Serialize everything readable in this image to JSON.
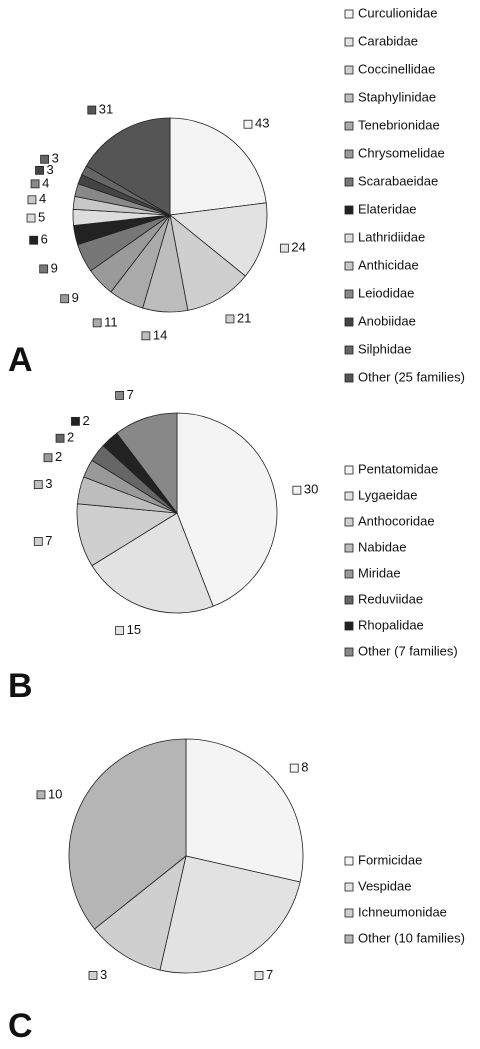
{
  "chart_data": [
    {
      "type": "pie",
      "panel": "A",
      "categories": [
        "Curculionidae",
        "Carabidae",
        "Coccinellidae",
        "Staphylinidae",
        "Tenebrionidae",
        "Chrysomelidae",
        "Scarabaeidae",
        "Elateridae",
        "Lathridiidae",
        "Anthicidae",
        "Leiodidae",
        "Anobiidae",
        "Silphidae",
        "Other (25 families)"
      ],
      "values": [
        43,
        24,
        21,
        14,
        11,
        9,
        9,
        6,
        5,
        4,
        4,
        3,
        3,
        31
      ],
      "colors": [
        "#f4f4f4",
        "#e2e2e2",
        "#cfcfcf",
        "#bdbdbd",
        "#aaaaaa",
        "#9a9a9a",
        "#777777",
        "#222222",
        "#dddddd",
        "#c8c8c8",
        "#888888",
        "#444444",
        "#666666",
        "#555555"
      ],
      "legend": "right"
    },
    {
      "type": "pie",
      "panel": "B",
      "categories": [
        "Pentatomidae",
        "Lygaeidae",
        "Anthocoridae",
        "Nabidae",
        "Miridae",
        "Reduviidae",
        "Rhopalidae",
        "Other (7 families)"
      ],
      "values": [
        30,
        15,
        7,
        3,
        2,
        2,
        2,
        7
      ],
      "colors": [
        "#f4f4f4",
        "#e2e2e2",
        "#cfcfcf",
        "#bdbdbd",
        "#999999",
        "#666666",
        "#222222",
        "#888888"
      ],
      "legend": "right"
    },
    {
      "type": "pie",
      "panel": "C",
      "categories": [
        "Formicidae",
        "Vespidae",
        "Ichneumonidae",
        "Other (10 families)"
      ],
      "values": [
        8,
        7,
        3,
        10
      ],
      "colors": [
        "#f4f4f4",
        "#e2e2e2",
        "#cfcfcf",
        "#b5b5b5"
      ],
      "legend": "right"
    }
  ]
}
